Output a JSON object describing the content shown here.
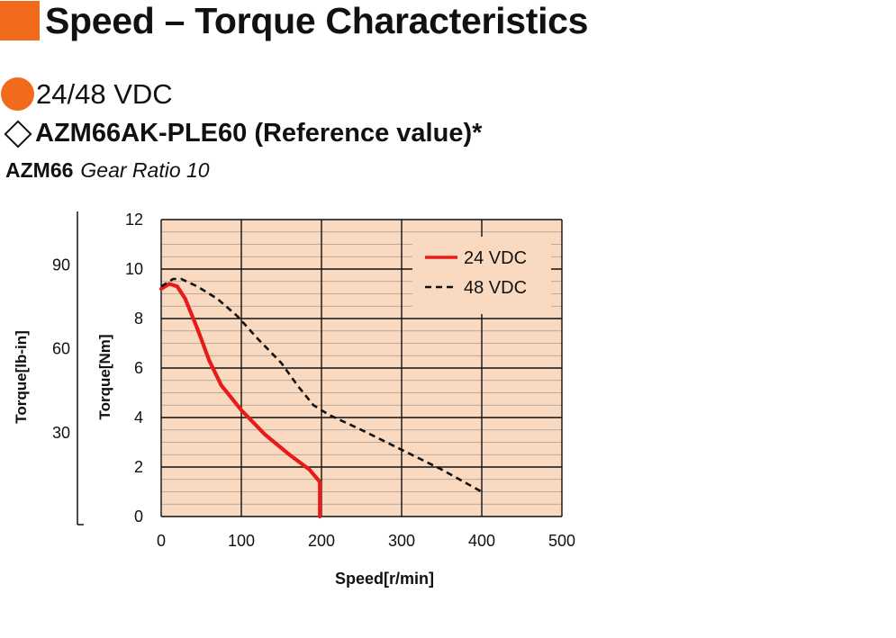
{
  "header": {
    "title": "Speed – Torque Characteristics",
    "accent_color": "#f26a1b"
  },
  "voltage": {
    "label": "24/48 VDC"
  },
  "model": {
    "label": "AZM66AK-PLE60 (Reference value)*"
  },
  "subtitle": {
    "bold": "AZM66",
    "italic": "Gear Ratio 10"
  },
  "chart_data": {
    "type": "line",
    "xlabel": "Speed[r/min]",
    "ylabel": "Torque[Nm]",
    "y2label": "Torque[lb-in]",
    "xlim": [
      0,
      500
    ],
    "ylim": [
      0,
      12
    ],
    "x_ticks": [
      "0",
      "100",
      "200",
      "300",
      "400",
      "500"
    ],
    "y_ticks": [
      "0",
      "2",
      "4",
      "6",
      "8",
      "10",
      "12"
    ],
    "y2_ticks": [
      "30",
      "60",
      "90"
    ],
    "y2_tick_values_nm": [
      3.39,
      6.78,
      10.17
    ],
    "grid": true,
    "minor_y_grid_step": 0.5,
    "legend_position": "top-right",
    "plot_background": "#f9d9c0",
    "series": [
      {
        "name": "24 VDC",
        "color": "#e81b1b",
        "style": "solid",
        "points": [
          [
            0,
            9.2
          ],
          [
            10,
            9.4
          ],
          [
            20,
            9.3
          ],
          [
            30,
            8.8
          ],
          [
            45,
            7.6
          ],
          [
            60,
            6.3
          ],
          [
            75,
            5.3
          ],
          [
            100,
            4.3
          ],
          [
            130,
            3.3
          ],
          [
            160,
            2.5
          ],
          [
            185,
            1.9
          ],
          [
            198,
            1.4
          ],
          [
            198,
            0
          ]
        ]
      },
      {
        "name": "48 VDC",
        "color": "#111111",
        "style": "dashed",
        "points": [
          [
            0,
            9.3
          ],
          [
            15,
            9.6
          ],
          [
            25,
            9.6
          ],
          [
            45,
            9.3
          ],
          [
            70,
            8.8
          ],
          [
            95,
            8.1
          ],
          [
            120,
            7.2
          ],
          [
            150,
            6.2
          ],
          [
            170,
            5.3
          ],
          [
            190,
            4.5
          ],
          [
            210,
            4.1
          ],
          [
            250,
            3.5
          ],
          [
            300,
            2.7
          ],
          [
            350,
            1.9
          ],
          [
            400,
            1.0
          ]
        ]
      }
    ]
  }
}
